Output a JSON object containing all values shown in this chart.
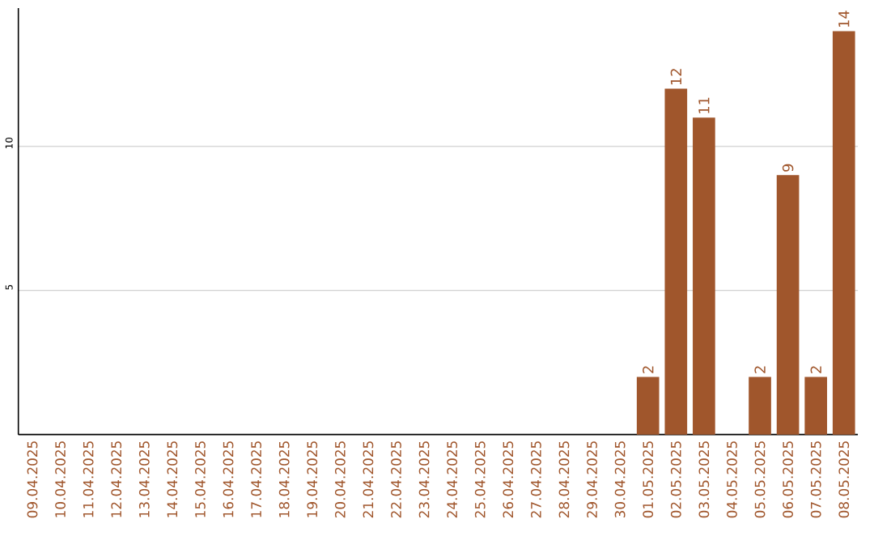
{
  "chart_data": {
    "type": "bar",
    "categories": [
      "09.04.2025",
      "10.04.2025",
      "11.04.2025",
      "12.04.2025",
      "13.04.2025",
      "14.04.2025",
      "15.04.2025",
      "16.04.2025",
      "17.04.2025",
      "18.04.2025",
      "19.04.2025",
      "20.04.2025",
      "21.04.2025",
      "22.04.2025",
      "23.04.2025",
      "24.04.2025",
      "25.04.2025",
      "26.04.2025",
      "27.04.2025",
      "28.04.2025",
      "29.04.2025",
      "30.04.2025",
      "01.05.2025",
      "02.05.2025",
      "03.05.2025",
      "04.05.2025",
      "05.05.2025",
      "06.05.2025",
      "07.05.2025",
      "08.05.2025"
    ],
    "values": [
      0,
      0,
      0,
      0,
      0,
      0,
      0,
      0,
      0,
      0,
      0,
      0,
      0,
      0,
      0,
      0,
      0,
      0,
      0,
      0,
      0,
      0,
      2,
      12,
      11,
      0,
      2,
      9,
      2,
      14
    ],
    "value_labels": [
      null,
      null,
      null,
      null,
      null,
      null,
      null,
      null,
      null,
      null,
      null,
      null,
      null,
      null,
      null,
      null,
      null,
      null,
      null,
      null,
      null,
      null,
      "2",
      "12",
      "11",
      null,
      "2",
      "9",
      "2",
      "14"
    ],
    "color": "#a0562c",
    "ylim": [
      0,
      14.8
    ],
    "yticks": [
      5,
      10
    ],
    "grid": "y"
  }
}
